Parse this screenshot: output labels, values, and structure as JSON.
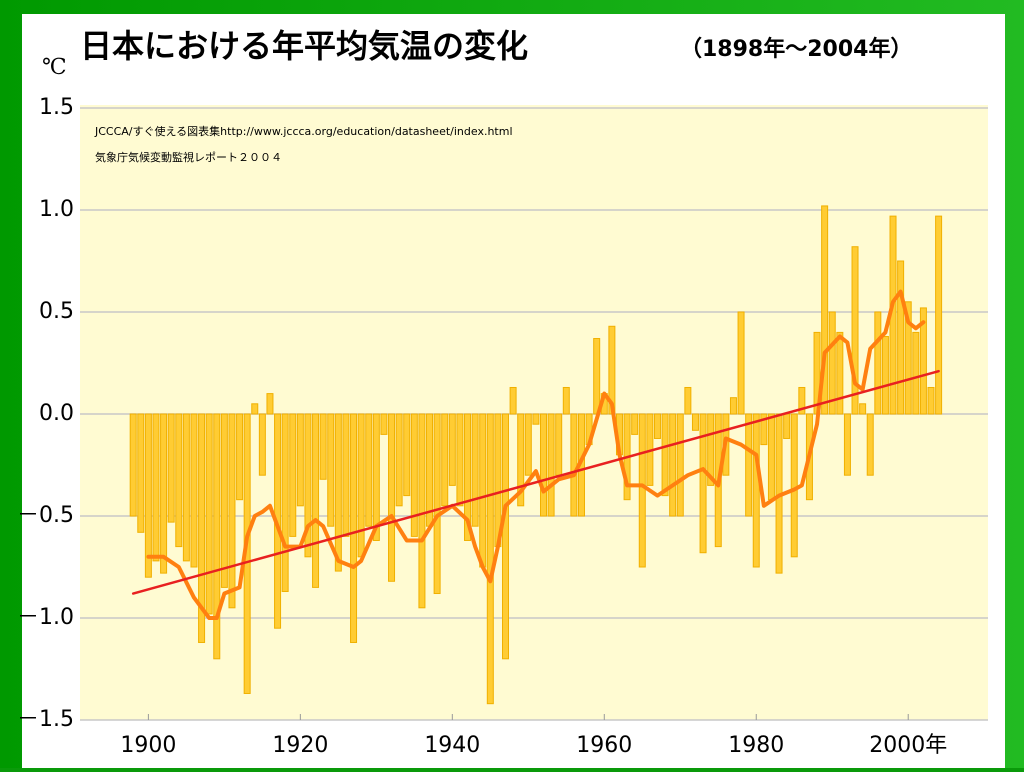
{
  "chart_data": {
    "type": "bar",
    "title": "日本における年平均気温の変化",
    "subtitle": "（1898年～2004年）",
    "y_label": "℃",
    "annotations": [
      "JCCCA/すぐ使える図表集http://www.jccca.org/education/datasheet/index.html",
      "気象庁気候変動監視レポート２００４"
    ],
    "x": [
      1898,
      1899,
      1900,
      1901,
      1902,
      1903,
      1904,
      1905,
      1906,
      1907,
      1908,
      1909,
      1910,
      1911,
      1912,
      1913,
      1914,
      1915,
      1916,
      1917,
      1918,
      1919,
      1920,
      1921,
      1922,
      1923,
      1924,
      1925,
      1926,
      1927,
      1928,
      1929,
      1930,
      1931,
      1932,
      1933,
      1934,
      1935,
      1936,
      1937,
      1938,
      1939,
      1940,
      1941,
      1942,
      1943,
      1944,
      1945,
      1946,
      1947,
      1948,
      1949,
      1950,
      1951,
      1952,
      1953,
      1954,
      1955,
      1956,
      1957,
      1958,
      1959,
      1960,
      1961,
      1962,
      1963,
      1964,
      1965,
      1966,
      1967,
      1968,
      1969,
      1970,
      1971,
      1972,
      1973,
      1974,
      1975,
      1976,
      1977,
      1978,
      1979,
      1980,
      1981,
      1982,
      1983,
      1984,
      1985,
      1986,
      1987,
      1988,
      1989,
      1990,
      1991,
      1992,
      1993,
      1994,
      1995,
      1996,
      1997,
      1998,
      1999,
      2000,
      2001,
      2002,
      2003,
      2004
    ],
    "values": [
      -0.5,
      -0.58,
      -0.8,
      -0.72,
      -0.78,
      -0.53,
      -0.65,
      -0.72,
      -0.75,
      -1.12,
      -0.98,
      -1.2,
      -0.85,
      -0.95,
      -0.42,
      -1.37,
      0.05,
      -0.3,
      0.1,
      -1.05,
      -0.87,
      -0.6,
      -0.45,
      -0.7,
      -0.85,
      -0.32,
      -0.55,
      -0.77,
      -0.6,
      -1.12,
      -0.7,
      -0.55,
      -0.62,
      -0.1,
      -0.82,
      -0.45,
      -0.4,
      -0.6,
      -0.95,
      -0.55,
      -0.88,
      -0.45,
      -0.35,
      -0.45,
      -0.62,
      -0.55,
      -0.75,
      -1.42,
      -0.65,
      -1.2,
      0.13,
      -0.45,
      -0.3,
      -0.05,
      -0.5,
      -0.5,
      -0.3,
      0.13,
      -0.5,
      -0.5,
      -0.15,
      0.37,
      0.1,
      0.43,
      -0.2,
      -0.42,
      -0.1,
      -0.75,
      -0.35,
      -0.12,
      -0.4,
      -0.5,
      -0.5,
      0.13,
      -0.08,
      -0.68,
      -0.35,
      -0.65,
      -0.3,
      0.08,
      0.5,
      -0.5,
      -0.75,
      -0.15,
      -0.42,
      -0.78,
      -0.12,
      -0.7,
      0.13,
      -0.42,
      0.4,
      1.02,
      0.5,
      0.4,
      -0.3,
      0.82,
      0.05,
      -0.3,
      0.5,
      0.38,
      0.97,
      0.75,
      0.55,
      0.4,
      0.52,
      0.13,
      0.97
    ],
    "color": "#ffcc33",
    "series": [
      {
        "type": "line",
        "color": "#ff8010",
        "x": [
          1900,
          1902,
          1904,
          1906,
          1908,
          1909,
          1910,
          1912,
          1913,
          1914,
          1915,
          1916,
          1917,
          1918,
          1920,
          1921,
          1922,
          1923,
          1925,
          1927,
          1928,
          1930,
          1932,
          1934,
          1936,
          1938,
          1940,
          1942,
          1943,
          1944,
          1945,
          1946,
          1947,
          1949,
          1951,
          1952,
          1954,
          1956,
          1958,
          1960,
          1961,
          1962,
          1963,
          1965,
          1967,
          1969,
          1971,
          1973,
          1975,
          1976,
          1978,
          1980,
          1981,
          1983,
          1985,
          1986,
          1988,
          1989,
          1991,
          1992,
          1993,
          1994,
          1995,
          1997,
          1998,
          1999,
          2000,
          2001,
          2002
        ],
        "values": [
          -0.7,
          -0.7,
          -0.75,
          -0.9,
          -1.0,
          -1.0,
          -0.88,
          -0.85,
          -0.6,
          -0.5,
          -0.48,
          -0.45,
          -0.55,
          -0.65,
          -0.65,
          -0.55,
          -0.52,
          -0.55,
          -0.72,
          -0.75,
          -0.72,
          -0.55,
          -0.5,
          -0.62,
          -0.62,
          -0.5,
          -0.45,
          -0.52,
          -0.65,
          -0.75,
          -0.82,
          -0.65,
          -0.45,
          -0.38,
          -0.28,
          -0.38,
          -0.32,
          -0.3,
          -0.15,
          0.1,
          0.05,
          -0.2,
          -0.35,
          -0.35,
          -0.4,
          -0.35,
          -0.3,
          -0.27,
          -0.35,
          -0.12,
          -0.15,
          -0.2,
          -0.45,
          -0.4,
          -0.37,
          -0.35,
          -0.05,
          0.3,
          0.38,
          0.35,
          0.15,
          0.12,
          0.32,
          0.4,
          0.55,
          0.6,
          0.45,
          0.42,
          0.45
        ]
      },
      {
        "type": "line",
        "color": "#e82020",
        "x": [
          1898,
          2004
        ],
        "values": [
          -0.88,
          0.21
        ]
      }
    ],
    "xlim": [
      1891,
      2010.5
    ],
    "xticks": [
      1900,
      1920,
      1940,
      1960,
      1980,
      {
        "value": 2000,
        "label": "2000年"
      }
    ],
    "ylim": [
      -1.5,
      1.5
    ],
    "yticks": [
      {
        "value": 1.5,
        "label": "1.5"
      },
      {
        "value": 1.0,
        "label": "1.0"
      },
      {
        "value": 0.5,
        "label": "0.5"
      },
      {
        "value": 0.0,
        "label": "0.0"
      },
      {
        "value": -0.5,
        "label": "－0.5"
      },
      {
        "value": -1.0,
        "label": "－1.0"
      },
      {
        "value": -1.5,
        "label": "－1.5"
      }
    ],
    "grid": true
  }
}
